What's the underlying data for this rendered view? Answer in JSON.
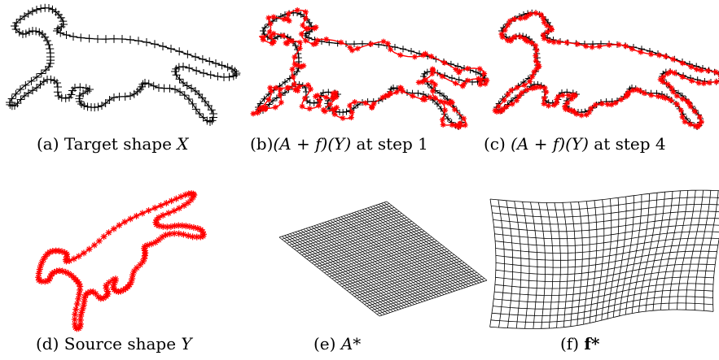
{
  "figure": {
    "captions": {
      "a": {
        "prefix": "(a) Target shape ",
        "math": "X"
      },
      "b": {
        "prefix": "(b)",
        "math": "(A + f)(Y)",
        "suffix": " at step 1"
      },
      "c": {
        "prefix": "(c) ",
        "math": "(A + f)(Y)",
        "suffix": " at step 4"
      },
      "d": {
        "prefix": "(d) Source shape ",
        "math": "Y"
      },
      "e": {
        "prefix": "(e) ",
        "math": "A*"
      },
      "f": {
        "prefix": "(f) ",
        "math": "f*"
      }
    }
  },
  "colors": {
    "target": "#000000",
    "source": "#ff0000",
    "grid": "#000000"
  }
}
